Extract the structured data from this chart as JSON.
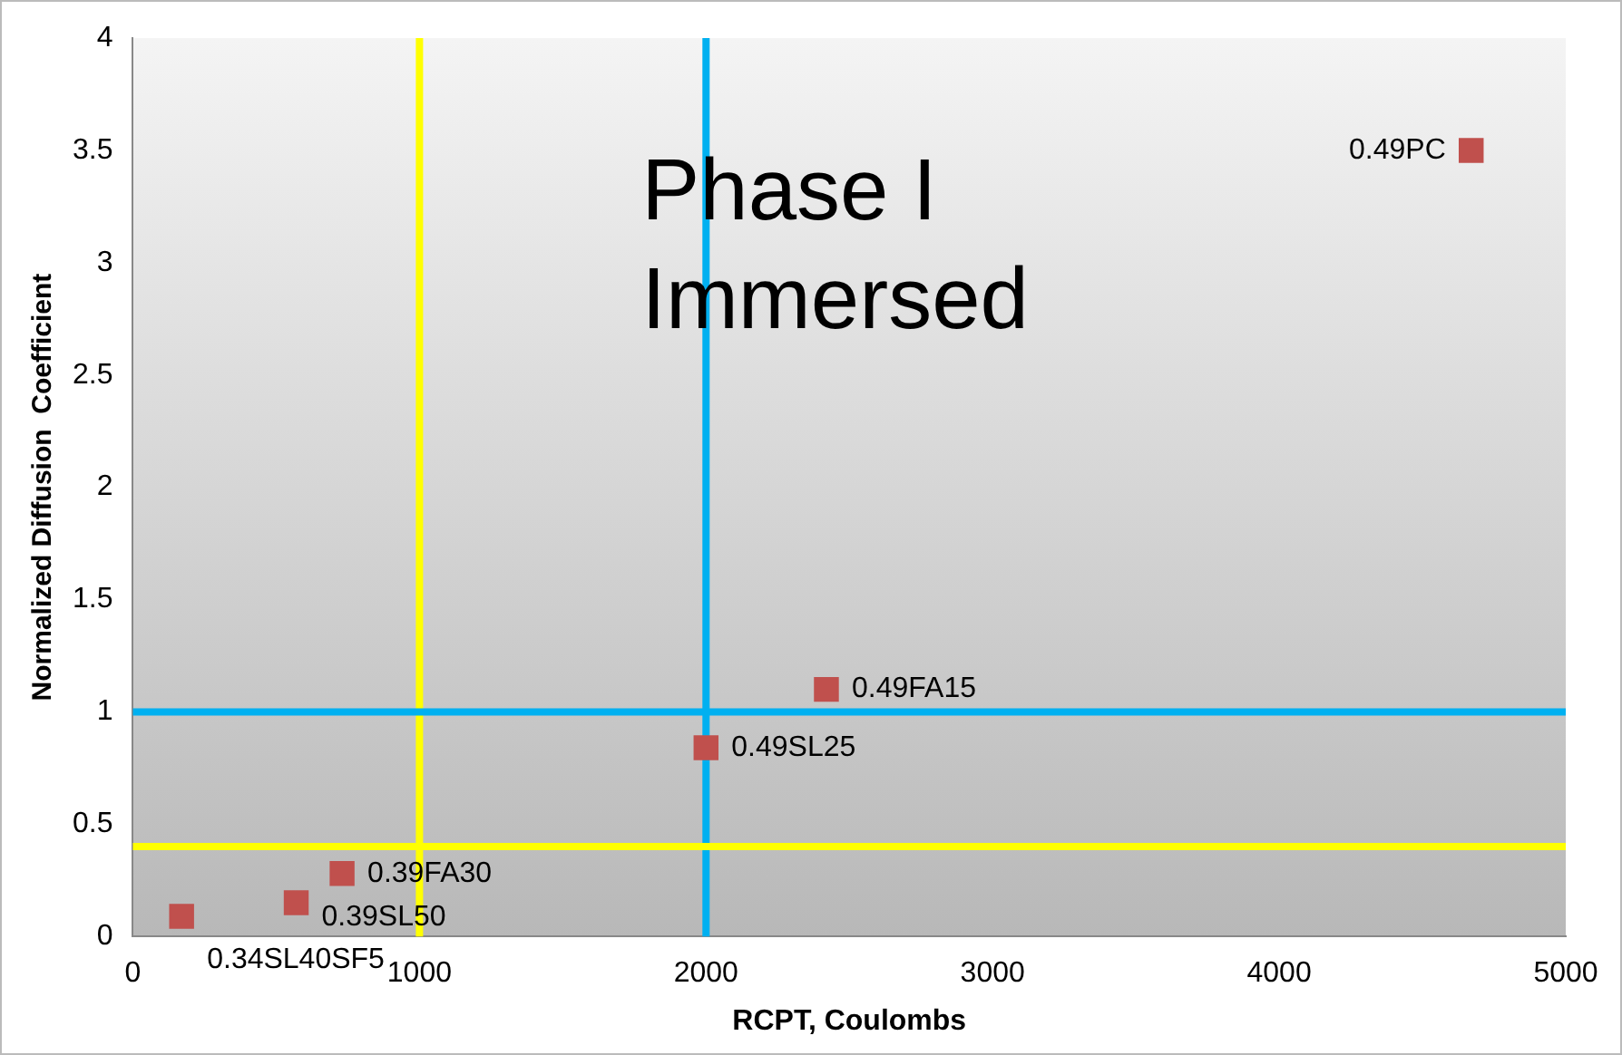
{
  "chart_data": {
    "type": "scatter",
    "xlabel": "RCPT, Coulombs",
    "ylabel": "Normalized Diffusion  Coefficient",
    "series": [
      {
        "name": "0.49PC",
        "color": "#c0504d",
        "x": [
          4670
        ],
        "values": [
          3.5
        ]
      },
      {
        "name": "0.49FA15",
        "color": "#c0504d",
        "x": [
          2420
        ],
        "values": [
          1.1
        ]
      },
      {
        "name": "0.49SL25",
        "color": "#c0504d",
        "x": [
          2000
        ],
        "values": [
          0.84
        ]
      },
      {
        "name": "0.39FA30",
        "color": "#c0504d",
        "x": [
          730
        ],
        "values": [
          0.28
        ]
      },
      {
        "name": "0.39SL50",
        "color": "#c0504d",
        "x": [
          570
        ],
        "values": [
          0.15
        ]
      },
      {
        "name": "0.34SL40SF5",
        "color": "#c0504d",
        "x": [
          170
        ],
        "values": [
          0.09
        ]
      }
    ],
    "marker": "square",
    "legend": false,
    "grid": false,
    "xlim": [
      0,
      5000
    ],
    "xticks": [
      0,
      1000,
      2000,
      3000,
      4000,
      5000
    ],
    "ylim": [
      0,
      4
    ],
    "yticks": [
      0,
      0.5,
      1,
      1.5,
      2,
      2.5,
      3,
      3.5,
      4
    ],
    "ref_lines": [
      {
        "axis": "x",
        "value": 1000,
        "color": "#ffff00"
      },
      {
        "axis": "x",
        "value": 2000,
        "color": "#00b0f0"
      },
      {
        "axis": "y",
        "value": 1,
        "color": "#00b0f0"
      },
      {
        "axis": "y",
        "value": 0.4,
        "color": "#ffff00"
      }
    ],
    "annotations": [
      "Phase I Immersed"
    ]
  }
}
